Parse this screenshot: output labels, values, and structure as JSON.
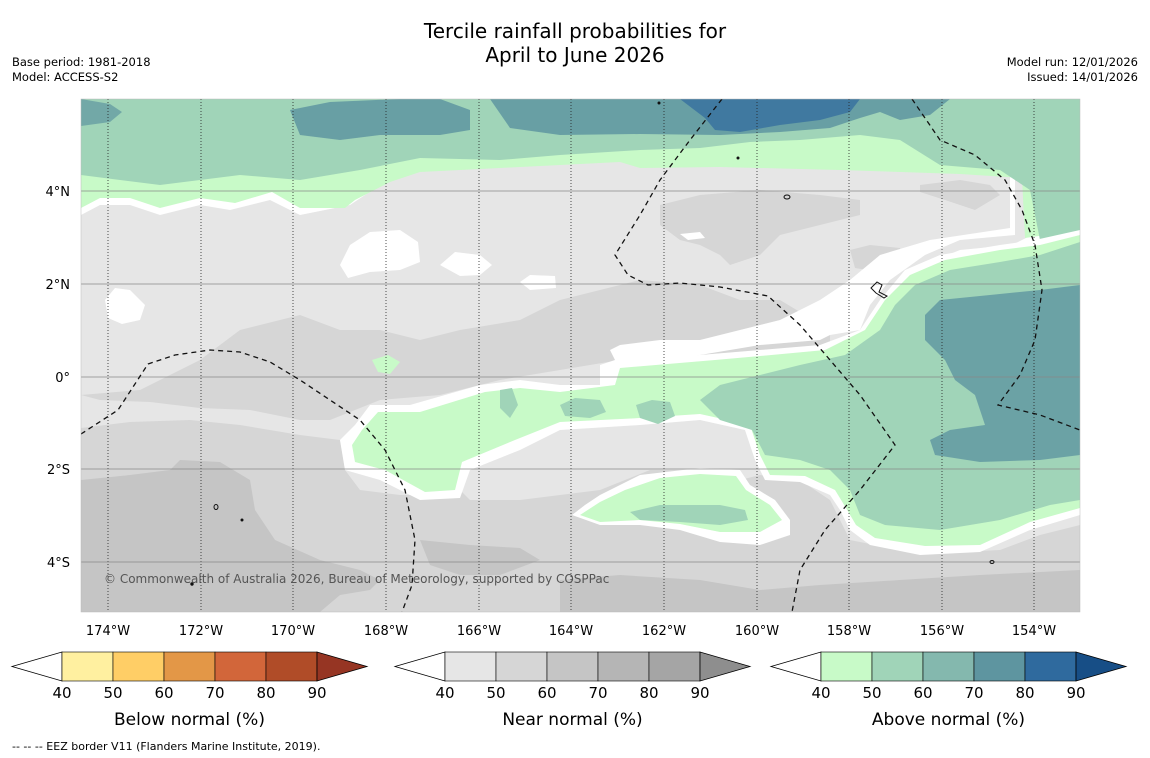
{
  "title": {
    "line1": "Tercile rainfall probabilities for",
    "line2": "April to June 2026"
  },
  "meta": {
    "base_period": "Base period: 1981-2018",
    "model": "Model: ACCESS-S2",
    "model_run": "Model run: 12/01/2026",
    "issued": "Issued: 14/01/2026"
  },
  "map": {
    "copyright": "© Commonwealth of Australia 2026, Bureau of Meteorology, supported by COSPPac",
    "lon_labels": [
      "174°W",
      "172°W",
      "170°W",
      "168°W",
      "166°W",
      "164°W",
      "162°W",
      "160°W",
      "158°W",
      "156°W",
      "154°W"
    ],
    "lat_labels": [
      "4°N",
      "2°N",
      "0°",
      "2°S",
      "4°S"
    ]
  },
  "colorbars": [
    {
      "name": "Below normal (%)",
      "ticks": [
        "40",
        "50",
        "60",
        "70",
        "80",
        "90"
      ],
      "colors": [
        "#fff0a0",
        "#ffce66",
        "#e39747",
        "#d2663a",
        "#b04c28",
        "#963523"
      ]
    },
    {
      "name": "Near normal (%)",
      "ticks": [
        "40",
        "50",
        "60",
        "70",
        "80",
        "90"
      ],
      "colors": [
        "#e6e6e6",
        "#d6d6d6",
        "#c5c5c5",
        "#b5b5b5",
        "#a5a5a5",
        "#8e8e8e"
      ]
    },
    {
      "name": "Above normal (%)",
      "ticks": [
        "40",
        "50",
        "60",
        "70",
        "80",
        "90"
      ],
      "colors": [
        "#c8fac8",
        "#a0d4b8",
        "#84b8ae",
        "#5e95a0",
        "#2f6a9e",
        "#174e86"
      ]
    }
  ],
  "footer": "--  --  -- EEZ border V11 (Flanders Marine Institute, 2019)."
}
